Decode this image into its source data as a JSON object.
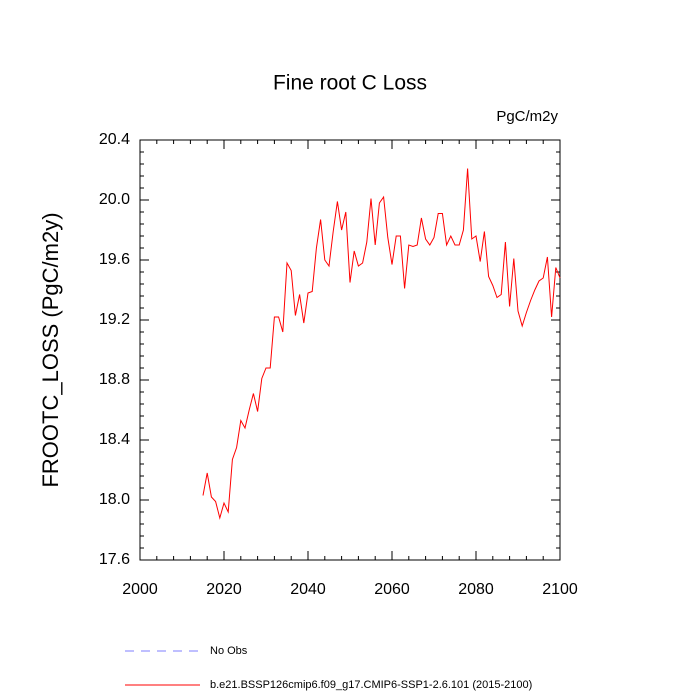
{
  "chart_data": {
    "type": "line",
    "title": "Fine root C Loss",
    "units": "PgC/m2y",
    "y_label": "FROOTC_LOSS  (PgC/m2y)",
    "x": [
      2015,
      2016,
      2017,
      2018,
      2019,
      2020,
      2021,
      2022,
      2023,
      2024,
      2025,
      2026,
      2027,
      2028,
      2029,
      2030,
      2031,
      2032,
      2033,
      2034,
      2035,
      2036,
      2037,
      2038,
      2039,
      2040,
      2041,
      2042,
      2043,
      2044,
      2045,
      2046,
      2047,
      2048,
      2049,
      2050,
      2051,
      2052,
      2053,
      2054,
      2055,
      2056,
      2057,
      2058,
      2059,
      2060,
      2061,
      2062,
      2063,
      2064,
      2065,
      2066,
      2067,
      2068,
      2069,
      2070,
      2071,
      2072,
      2073,
      2074,
      2075,
      2076,
      2077,
      2078,
      2079,
      2080,
      2081,
      2082,
      2083,
      2084,
      2085,
      2086,
      2087,
      2088,
      2089,
      2090,
      2091,
      2092,
      2093,
      2094,
      2095,
      2096,
      2097,
      2098,
      2099,
      2100
    ],
    "series": [
      {
        "name": "No Obs",
        "color": "#7f7fff",
        "dashed": true,
        "values": [
          null,
          null,
          null,
          null,
          null,
          null,
          null,
          null,
          null,
          null,
          null,
          null,
          null,
          null,
          null,
          null,
          null,
          null,
          null,
          null,
          null,
          null,
          null,
          null,
          null,
          null,
          null,
          null,
          null,
          null,
          null,
          null,
          null,
          null,
          null,
          null,
          null,
          null,
          null,
          null,
          null,
          null,
          null,
          null,
          null,
          null,
          null,
          null,
          null,
          null,
          null,
          null,
          null,
          null,
          null,
          null,
          null,
          null,
          null,
          null,
          null,
          null,
          null,
          null,
          null,
          null,
          null,
          null,
          null,
          null,
          null,
          null,
          null,
          null,
          null,
          null,
          null,
          null,
          null,
          null,
          null,
          null,
          null,
          null,
          null,
          null
        ]
      },
      {
        "name": "b.e21.BSSP126cmip6.f09_g17.CMIP6-SSP1-2.6.101 (2015-2100)",
        "color": "#ff0000",
        "dashed": false,
        "values": [
          18.03,
          18.18,
          18.02,
          17.99,
          17.88,
          17.98,
          17.92,
          18.27,
          18.35,
          18.53,
          18.48,
          18.6,
          18.71,
          18.59,
          18.81,
          18.88,
          18.88,
          19.22,
          19.22,
          19.12,
          19.58,
          19.53,
          19.23,
          19.37,
          19.18,
          19.38,
          19.39,
          19.68,
          19.87,
          19.6,
          19.56,
          19.79,
          19.99,
          19.8,
          19.92,
          19.45,
          19.66,
          19.56,
          19.58,
          19.72,
          20.01,
          19.7,
          19.98,
          20.02,
          19.75,
          19.57,
          19.76,
          19.76,
          19.41,
          19.7,
          19.69,
          19.7,
          19.88,
          19.74,
          19.7,
          19.75,
          19.91,
          19.91,
          19.7,
          19.76,
          19.7,
          19.7,
          19.8,
          20.21,
          19.74,
          19.76,
          19.59,
          19.79,
          19.49,
          19.43,
          19.35,
          19.37,
          19.72,
          19.29,
          19.61,
          19.26,
          19.16,
          19.25,
          19.33,
          19.4,
          19.46,
          19.48,
          19.62,
          19.22,
          19.55,
          19.48
        ]
      }
    ],
    "xlim": [
      2000,
      2100
    ],
    "xticks": [
      2000,
      2020,
      2040,
      2060,
      2080,
      2100
    ],
    "ylim": [
      17.6,
      20.4
    ],
    "yticks": [
      {
        "value": 17.6,
        "label": "17.6"
      },
      {
        "value": 18.0,
        "label": "18.0"
      },
      {
        "value": 18.4,
        "label": "18.4"
      },
      {
        "value": 18.8,
        "label": "18.8"
      },
      {
        "value": 19.2,
        "label": "19.2"
      },
      {
        "value": 19.6,
        "label": "19.6"
      },
      {
        "value": 20.0,
        "label": "20.0"
      },
      {
        "value": 20.4,
        "label": "20.4"
      }
    ],
    "grid": false
  }
}
